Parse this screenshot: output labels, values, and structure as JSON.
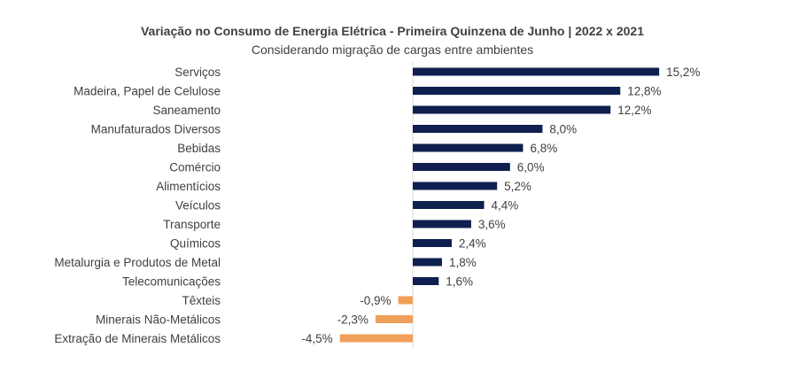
{
  "chart_data": {
    "type": "bar",
    "orientation": "horizontal",
    "title": "Variação no Consumo de Energia Elétrica - Primeira Quinzena de Junho | 2022 x 2021",
    "subtitle": "Considerando migração de cargas entre ambientes",
    "categories": [
      "Serviços",
      "Madeira, Papel de Celulose",
      "Saneamento",
      "Manufaturados Diversos",
      "Bebidas",
      "Comércio",
      "Alimentícios",
      "Veículos",
      "Transporte",
      "Químicos",
      "Metalurgia e Produtos de Metal",
      "Telecomunicações",
      "Têxteis",
      "Minerais Não-Metálicos",
      "Extração de Minerais Metálicos"
    ],
    "values": [
      15.2,
      12.8,
      12.2,
      8.0,
      6.8,
      6.0,
      5.2,
      4.4,
      3.6,
      2.4,
      1.8,
      1.6,
      -0.9,
      -2.3,
      -4.5
    ],
    "value_labels": [
      "15,2%",
      "12,8%",
      "12,2%",
      "8,0%",
      "6,8%",
      "6,0%",
      "5,2%",
      "4,4%",
      "3,6%",
      "2,4%",
      "1,8%",
      "1,6%",
      "-0,9%",
      "-2,3%",
      "-4,5%"
    ],
    "unit": "%",
    "colors": {
      "positive": "#0f1f4f",
      "negative": "#f0a05a",
      "axis": "#d9d9d9"
    },
    "grid": false,
    "legend": "none"
  }
}
